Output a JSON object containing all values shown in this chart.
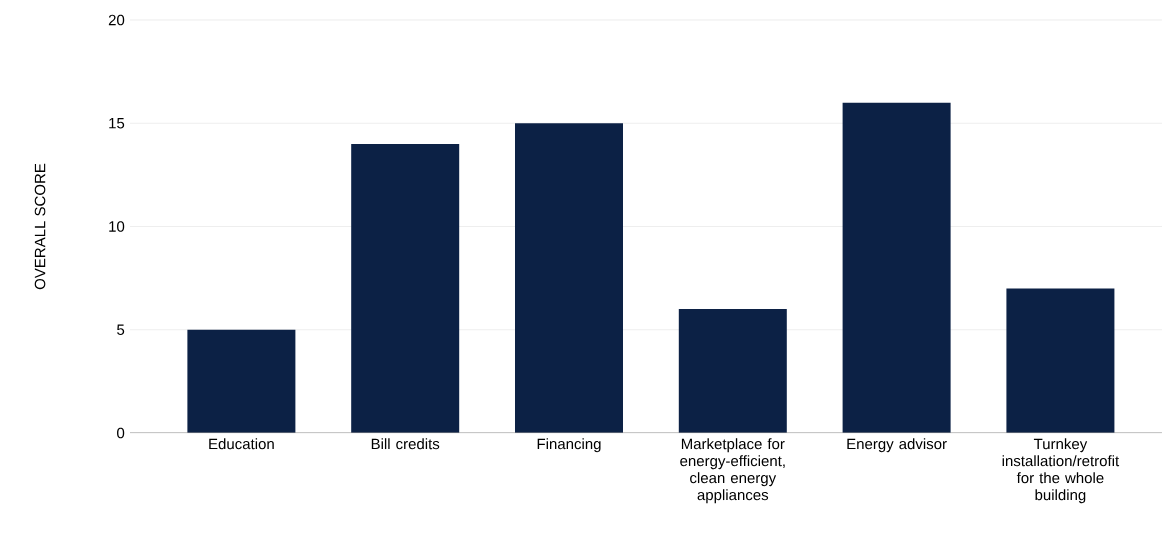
{
  "chart_data": {
    "type": "bar",
    "ylabel": "OVERALL SCORE",
    "categories": [
      "Education",
      "Bill credits",
      "Financing",
      "Marketplace for energy-efficient, clean energy appliances",
      "Energy advisor",
      "Turnkey installation/retrofit for the whole building"
    ],
    "values": [
      5,
      14,
      15,
      6,
      16,
      7
    ],
    "color": "#0c2145",
    "ylim": [
      0,
      20
    ],
    "yticks": [
      0,
      5,
      10,
      15,
      20
    ],
    "grid": "y"
  }
}
